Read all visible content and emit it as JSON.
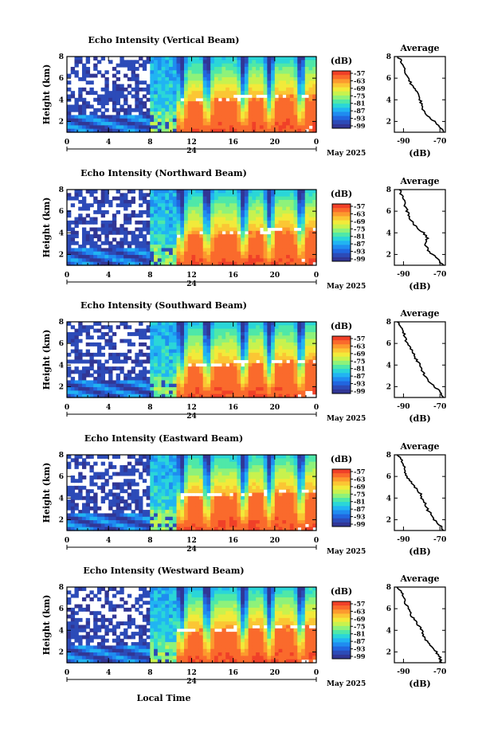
{
  "figure": {
    "date_label": "May 2025",
    "x_title": "Local Time",
    "colorbar_unit": "(dB)",
    "colorbar_ticks": [
      "-57",
      "-63",
      "-69",
      "-75",
      "-81",
      "-87",
      "-93",
      "-99"
    ],
    "colormap": [
      "#313695",
      "#2c4bb8",
      "#2166e0",
      "#1f8cf0",
      "#21b4f2",
      "#2ad6d8",
      "#4fe8a8",
      "#8ef27a",
      "#c8f24e",
      "#f2ea3a",
      "#fbc634",
      "#fc9a2e",
      "#fa6a2c",
      "#f04028"
    ]
  },
  "chart_data": [
    {
      "type": "heatmap",
      "title": "Echo Intensity (Vertical Beam)",
      "ylabel": "Height (km)",
      "xlim": [
        0,
        48
      ],
      "ylim": [
        1,
        8
      ],
      "x_ticks": [
        "0",
        "4",
        "8",
        "12",
        "16",
        "20",
        "0"
      ],
      "x_ticks_lower": [
        "24"
      ],
      "y_ticks": [
        "2",
        "4",
        "6",
        "8"
      ],
      "colorbar_label": "(dB)",
      "color_range": [
        -99,
        -57
      ],
      "profile": {
        "title": "Average",
        "xlabel": "(dB)",
        "x_ticks": [
          "-90",
          "-70"
        ],
        "y_ticks": [
          "2",
          "4",
          "6",
          "8"
        ],
        "xlim": [
          -95,
          -67
        ],
        "ylim": [
          1,
          8
        ],
        "height_km": [
          1.0,
          1.5,
          2.0,
          2.5,
          3.0,
          3.5,
          4.0,
          4.5,
          5.0,
          5.5,
          6.0,
          6.5,
          7.0,
          7.5,
          8.0
        ],
        "intensity_db": [
          -68,
          -70,
          -73,
          -77,
          -79,
          -80,
          -81,
          -82,
          -84,
          -86,
          -87,
          -89,
          -90,
          -91,
          -93
        ]
      }
    },
    {
      "type": "heatmap",
      "title": "Echo Intensity (Northward Beam)",
      "ylabel": "Height (km)",
      "xlim": [
        0,
        48
      ],
      "ylim": [
        1,
        8
      ],
      "x_ticks": [
        "0",
        "4",
        "8",
        "12",
        "16",
        "20",
        "0"
      ],
      "x_ticks_lower": [
        "24"
      ],
      "y_ticks": [
        "2",
        "4",
        "6",
        "8"
      ],
      "colorbar_label": "(dB)",
      "color_range": [
        -99,
        -57
      ],
      "profile": {
        "title": "Average",
        "xlabel": "(dB)",
        "x_ticks": [
          "-90",
          "-70"
        ],
        "y_ticks": [
          "2",
          "4",
          "6",
          "8"
        ],
        "xlim": [
          -95,
          -67
        ],
        "ylim": [
          1,
          8
        ],
        "height_km": [
          1.0,
          1.5,
          2.0,
          2.5,
          3.0,
          3.5,
          4.0,
          4.5,
          5.0,
          5.5,
          6.0,
          6.5,
          7.0,
          7.5,
          8.0
        ],
        "intensity_db": [
          -68,
          -71,
          -74,
          -77,
          -78,
          -77,
          -79,
          -83,
          -85,
          -87,
          -88,
          -89,
          -90,
          -91,
          -92
        ]
      }
    },
    {
      "type": "heatmap",
      "title": "Echo Intensity (Southward Beam)",
      "ylabel": "Height (km)",
      "xlim": [
        0,
        48
      ],
      "ylim": [
        1,
        8
      ],
      "x_ticks": [
        "0",
        "4",
        "8",
        "12",
        "16",
        "20",
        "0"
      ],
      "x_ticks_lower": [
        "24"
      ],
      "y_ticks": [
        "2",
        "4",
        "6",
        "8"
      ],
      "colorbar_label": "(dB)",
      "color_range": [
        -99,
        -57
      ],
      "profile": {
        "title": "Average",
        "xlabel": "(dB)",
        "x_ticks": [
          "-90",
          "-70"
        ],
        "y_ticks": [
          "2",
          "4",
          "6",
          "8"
        ],
        "xlim": [
          -95,
          -67
        ],
        "ylim": [
          1,
          8
        ],
        "height_km": [
          1.0,
          1.5,
          2.0,
          2.5,
          3.0,
          3.5,
          4.0,
          4.5,
          5.0,
          5.5,
          6.0,
          6.5,
          7.0,
          7.5,
          8.0
        ],
        "intensity_db": [
          -68,
          -70,
          -73,
          -76,
          -78,
          -80,
          -81,
          -83,
          -84,
          -86,
          -88,
          -89,
          -90,
          -91,
          -93
        ]
      }
    },
    {
      "type": "heatmap",
      "title": "Echo Intensity (Eastward Beam)",
      "ylabel": "Height (km)",
      "xlim": [
        0,
        48
      ],
      "ylim": [
        1,
        8
      ],
      "x_ticks": [
        "0",
        "4",
        "8",
        "12",
        "16",
        "20",
        "0"
      ],
      "x_ticks_lower": [
        "24"
      ],
      "y_ticks": [
        "2",
        "4",
        "6",
        "8"
      ],
      "colorbar_label": "(dB)",
      "color_range": [
        -99,
        -57
      ],
      "profile": {
        "title": "Average",
        "xlabel": "(dB)",
        "x_ticks": [
          "-90",
          "-70"
        ],
        "y_ticks": [
          "2",
          "4",
          "6",
          "8"
        ],
        "xlim": [
          -95,
          -67
        ],
        "ylim": [
          1,
          8
        ],
        "height_km": [
          1.0,
          1.5,
          2.0,
          2.5,
          3.0,
          3.5,
          4.0,
          4.5,
          5.0,
          5.5,
          6.0,
          6.5,
          7.0,
          7.5,
          8.0
        ],
        "intensity_db": [
          -68,
          -70,
          -73,
          -75,
          -77,
          -78,
          -80,
          -81,
          -84,
          -86,
          -88,
          -89,
          -90,
          -91,
          -93
        ]
      }
    },
    {
      "type": "heatmap",
      "title": "Echo Intensity (Westward Beam)",
      "ylabel": "Height (km)",
      "xlim": [
        0,
        48
      ],
      "ylim": [
        1,
        8
      ],
      "x_ticks": [
        "0",
        "4",
        "8",
        "12",
        "16",
        "20",
        "0"
      ],
      "x_ticks_lower": [
        "24"
      ],
      "y_ticks": [
        "2",
        "4",
        "6",
        "8"
      ],
      "colorbar_label": "(dB)",
      "color_range": [
        -99,
        -57
      ],
      "profile": {
        "title": "Average",
        "xlabel": "(dB)",
        "x_ticks": [
          "-90",
          "-70"
        ],
        "y_ticks": [
          "2",
          "4",
          "6",
          "8"
        ],
        "xlim": [
          -95,
          -67
        ],
        "ylim": [
          1,
          8
        ],
        "height_km": [
          1.0,
          1.5,
          2.0,
          2.5,
          3.0,
          3.5,
          4.0,
          4.5,
          5.0,
          5.5,
          6.0,
          6.5,
          7.0,
          7.5,
          8.0
        ],
        "intensity_db": [
          -69,
          -70,
          -72,
          -75,
          -77,
          -79,
          -80,
          -82,
          -84,
          -86,
          -87,
          -89,
          -90,
          -91,
          -93
        ]
      }
    }
  ]
}
